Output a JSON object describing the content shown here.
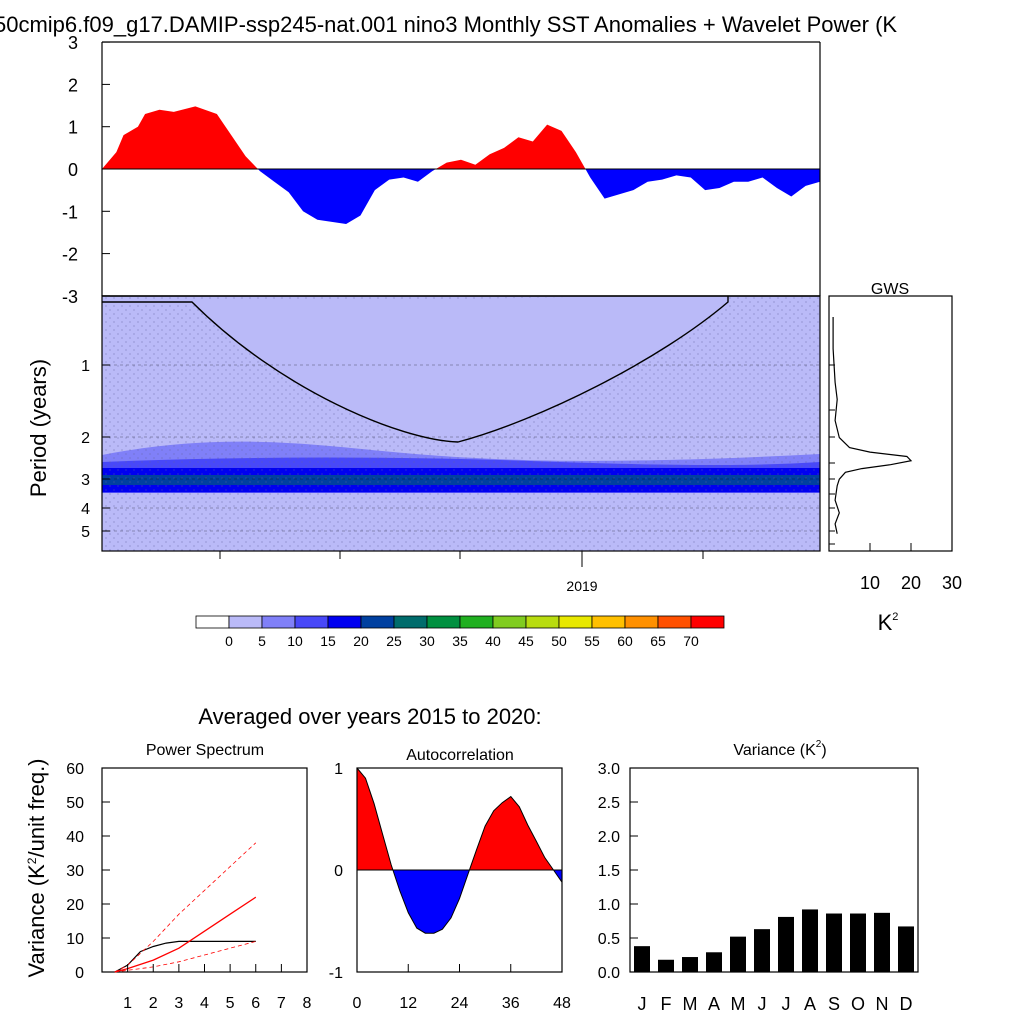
{
  "figure": {
    "title": "50cmip6.f09_g17.DAMIP-ssp245-nat.001 nino3 Monthly SST Anomalies + Wavelet Power (K",
    "avg_title": "Averaged over years 2015 to 2020:"
  },
  "colors": {
    "positive": "#ff0000",
    "negative": "#0000ff",
    "coi_fill": "#babaf8",
    "colorbar": [
      "#ffffff",
      "#babaf8",
      "#8080f8",
      "#4848f8",
      "#0000f0",
      "#0040a0",
      "#006c6c",
      "#009040",
      "#20b020",
      "#80cc20",
      "#b8dc10",
      "#e8e800",
      "#ffc000",
      "#ff9000",
      "#ff5000",
      "#ff0000"
    ]
  },
  "chart_data": [
    {
      "id": "sst_anomaly",
      "type": "area",
      "title": "",
      "xlabel": "",
      "ylabel": "",
      "ylim": [
        -3,
        3
      ],
      "yticks": [
        "3",
        "2",
        "1",
        "0",
        "-1",
        "-2",
        "-3"
      ],
      "x": [
        0.0,
        0.02,
        0.03,
        0.05,
        0.06,
        0.08,
        0.1,
        0.13,
        0.16,
        0.18,
        0.2,
        0.22,
        0.24,
        0.26,
        0.28,
        0.3,
        0.32,
        0.34,
        0.36,
        0.38,
        0.4,
        0.42,
        0.44,
        0.46,
        0.48,
        0.5,
        0.52,
        0.54,
        0.56,
        0.58,
        0.6,
        0.62,
        0.64,
        0.66,
        0.68,
        0.7,
        0.72,
        0.74,
        0.76,
        0.78,
        0.8,
        0.82,
        0.84,
        0.86,
        0.88,
        0.9,
        0.92,
        0.94,
        0.96,
        0.98,
        1.0
      ],
      "values": [
        0.0,
        0.4,
        0.8,
        1.0,
        1.3,
        1.4,
        1.35,
        1.48,
        1.3,
        0.8,
        0.3,
        -0.05,
        -0.3,
        -0.55,
        -1.0,
        -1.2,
        -1.25,
        -1.3,
        -1.1,
        -0.5,
        -0.25,
        -0.2,
        -0.3,
        -0.05,
        0.15,
        0.22,
        0.1,
        0.35,
        0.5,
        0.75,
        0.65,
        1.05,
        0.9,
        0.4,
        -0.2,
        -0.7,
        -0.6,
        -0.5,
        -0.3,
        -0.25,
        -0.15,
        -0.2,
        -0.5,
        -0.45,
        -0.3,
        -0.3,
        -0.2,
        -0.45,
        -0.65,
        -0.4,
        -0.3
      ]
    },
    {
      "id": "wavelet_power",
      "type": "heatmap",
      "title": "",
      "xlabel": "",
      "ylabel": "Period (years)",
      "yticks": [
        "1",
        "2",
        "3",
        "4",
        "5"
      ],
      "xticks": [
        "2019"
      ],
      "notes": "stippled significance pattern; cone of influence outline"
    },
    {
      "id": "gws",
      "type": "line",
      "title": "GWS",
      "xlabel": "K2",
      "xticks": [
        "10",
        "20",
        "30"
      ],
      "xlim": [
        0,
        30
      ],
      "period_years": [
        0.5,
        0.7,
        1.0,
        1.2,
        1.5,
        1.8,
        2.0,
        2.1,
        2.2,
        2.3,
        2.4,
        2.5,
        2.6,
        2.8,
        3.0,
        3.5,
        4.0,
        4.5,
        5.0
      ],
      "values": [
        1.0,
        1.0,
        1.5,
        2.0,
        1.5,
        2.5,
        5.0,
        10.0,
        19.0,
        20.0,
        15.0,
        8.0,
        4.0,
        2.5,
        2.0,
        1.5,
        2.5,
        1.5,
        2.0
      ]
    },
    {
      "id": "colorbar",
      "type": "legend",
      "labels": [
        "0",
        "5",
        "10",
        "15",
        "20",
        "25",
        "30",
        "35",
        "40",
        "45",
        "50",
        "55",
        "60",
        "65",
        "70"
      ]
    },
    {
      "id": "power_spectrum",
      "type": "line",
      "title": "Power Spectrum",
      "xlabel": "",
      "ylabel": "Variance (K2/unit freq.)",
      "xlim": [
        0,
        8
      ],
      "ylim": [
        0,
        60
      ],
      "xticks": [
        "1",
        "2",
        "3",
        "4",
        "5",
        "6",
        "7",
        "8"
      ],
      "yticks": [
        "0",
        "10",
        "20",
        "30",
        "40",
        "50",
        "60"
      ],
      "series": [
        {
          "x": [
            0.5,
            1,
            1.5,
            2,
            2.5,
            3,
            3.5,
            4,
            5,
            6
          ],
          "values": [
            0,
            2,
            6,
            7.5,
            8.5,
            9,
            9,
            9,
            9,
            9
          ]
        },
        {
          "x": [
            0.5,
            1,
            2,
            3,
            4,
            5,
            6
          ],
          "values": [
            0,
            1,
            3.5,
            7,
            12,
            17,
            22
          ]
        },
        {
          "x": [
            0.5,
            1,
            2,
            3,
            4,
            5,
            6
          ],
          "values": [
            0,
            2,
            9,
            17,
            24,
            31,
            38
          ]
        },
        {
          "x": [
            0.5,
            1,
            2,
            3,
            4,
            5,
            6
          ],
          "values": [
            0,
            0.5,
            1.5,
            3,
            5,
            7,
            9
          ]
        }
      ]
    },
    {
      "id": "autocorrelation",
      "type": "area",
      "title": "Autocorrelation",
      "xlim": [
        0,
        48
      ],
      "ylim": [
        -1,
        1
      ],
      "xticks": [
        "0",
        "12",
        "24",
        "36",
        "48"
      ],
      "yticks": [
        "1",
        "0",
        "-1"
      ],
      "x": [
        0,
        2,
        4,
        6,
        8,
        10,
        12,
        14,
        16,
        18,
        20,
        22,
        24,
        26,
        28,
        30,
        32,
        34,
        36,
        38,
        40,
        42,
        44,
        46,
        48
      ],
      "values": [
        1.0,
        0.9,
        0.65,
        0.35,
        0.05,
        -0.2,
        -0.42,
        -0.57,
        -0.62,
        -0.62,
        -0.58,
        -0.47,
        -0.28,
        -0.04,
        0.2,
        0.43,
        0.58,
        0.66,
        0.72,
        0.62,
        0.44,
        0.28,
        0.12,
        0.0,
        -0.12
      ]
    },
    {
      "id": "variance",
      "type": "bar",
      "title": "Variance (K2)",
      "ylim": [
        0,
        3
      ],
      "yticks": [
        "0.0",
        "0.5",
        "1.0",
        "1.5",
        "2.0",
        "2.5",
        "3.0"
      ],
      "categories": [
        "J",
        "F",
        "M",
        "A",
        "M",
        "J",
        "J",
        "A",
        "S",
        "O",
        "N",
        "D"
      ],
      "values": [
        0.38,
        0.18,
        0.22,
        0.29,
        0.52,
        0.63,
        0.81,
        0.92,
        0.86,
        0.86,
        0.87,
        0.67
      ]
    }
  ]
}
